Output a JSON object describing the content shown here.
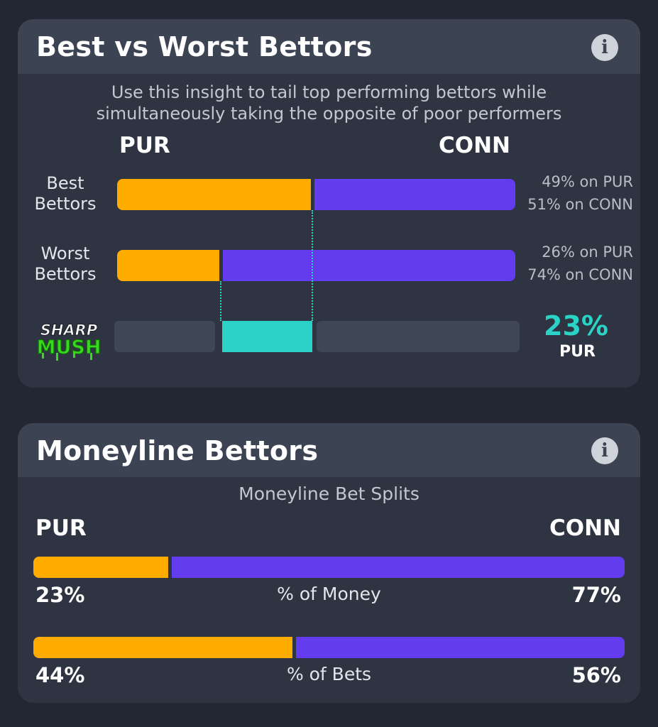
{
  "colors": {
    "pur": "#ffab00",
    "conn": "#643cf0",
    "accent": "#2ad3c5"
  },
  "best_worst": {
    "title": "Best vs Worst Bettors",
    "info_icon": "info-icon",
    "subtitle": "Use this insight to tail top performing bettors while simultaneously taking the opposite of poor performers",
    "team_left": "PUR",
    "team_right": "CONN",
    "rows": [
      {
        "label_line1": "Best",
        "label_line2": "Bettors",
        "pur_share": 0.49,
        "pct_pur": "49% on PUR",
        "pct_conn": "51% on CONN"
      },
      {
        "label_line1": "Worst",
        "label_line2": "Bettors",
        "pur_share": 0.26,
        "pct_pur": "26% on PUR",
        "pct_conn": "74% on CONN"
      }
    ],
    "sharp_mush": {
      "logo_top": "SHARP",
      "logo_bottom": "MUSH",
      "diff_pct": "23%",
      "diff_team": "PUR"
    }
  },
  "moneyline": {
    "title": "Moneyline Bettors",
    "info_icon": "info-icon",
    "subtitle": "Moneyline Bet Splits",
    "team_left": "PUR",
    "team_right": "CONN",
    "rows": [
      {
        "label": "% of Money",
        "pur_share": 0.23,
        "pur_pct": "23%",
        "conn_pct": "77%"
      },
      {
        "label": "% of Bets",
        "pur_share": 0.44,
        "pur_pct": "44%",
        "conn_pct": "56%"
      }
    ]
  }
}
